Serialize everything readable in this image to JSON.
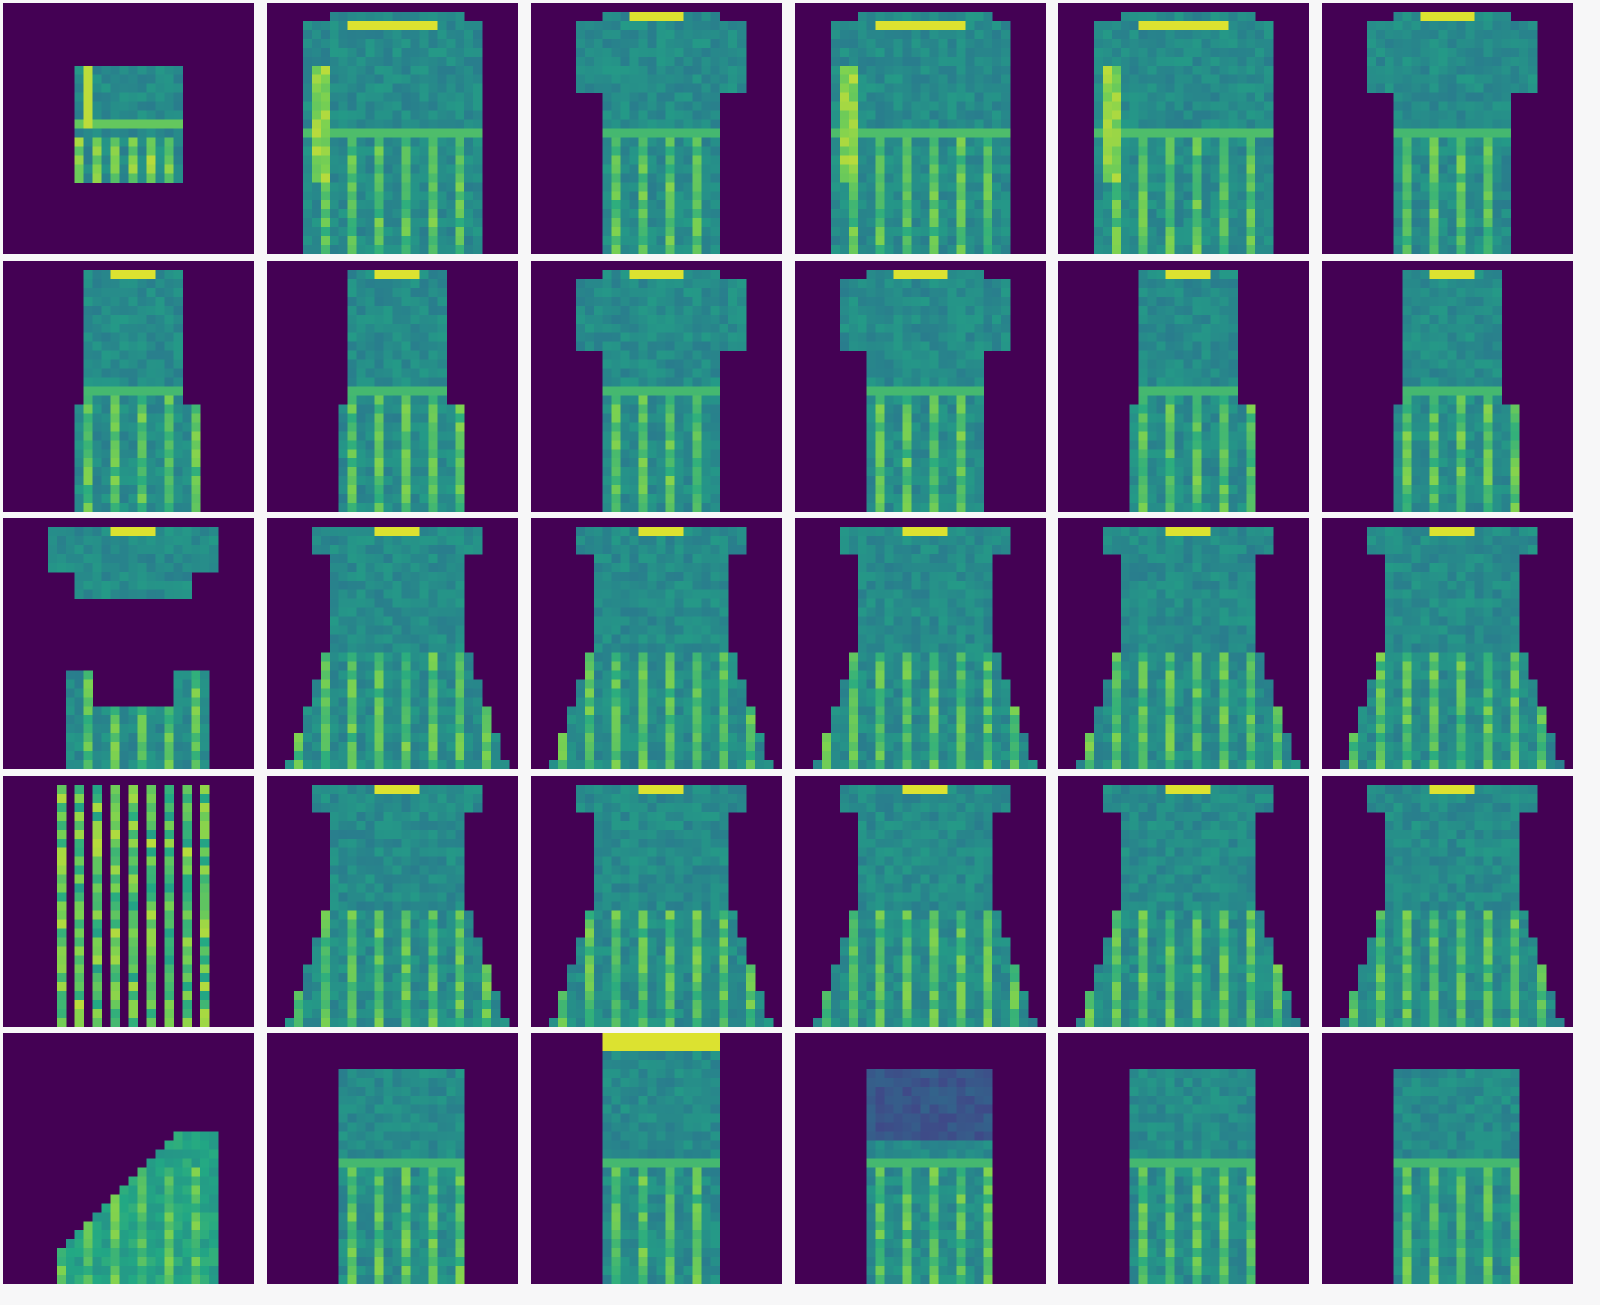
{
  "figure": {
    "rows": 5,
    "cols": 6,
    "colormap": {
      "name": "viridis",
      "stops": [
        "#440154",
        "#414487",
        "#2a788e",
        "#22a884",
        "#7ad151",
        "#fde725"
      ]
    },
    "background": "#f7f7f8",
    "row_contents": [
      [
        "small-garment-occluded",
        "long-sleeve-top",
        "short-sleeve-top",
        "long-sleeve-top",
        "long-sleeve-top",
        "short-sleeve-top"
      ],
      [
        "sleeveless-dress",
        "sleeveless-dress",
        "short-sleeve-dress",
        "short-sleeve-dress",
        "sleeveless-dress",
        "sleeveless-dress"
      ],
      [
        "dress-with-center-mask",
        "dress",
        "dress",
        "dress",
        "dress",
        "dress"
      ],
      [
        "vertical-stripes",
        "dress",
        "dress",
        "dress",
        "dress",
        "dress"
      ],
      [
        "triangle-masked-dress",
        "dress-partial",
        "dress-tall",
        "dress-faded-top",
        "dress-partial",
        "dress-partial"
      ]
    ]
  }
}
